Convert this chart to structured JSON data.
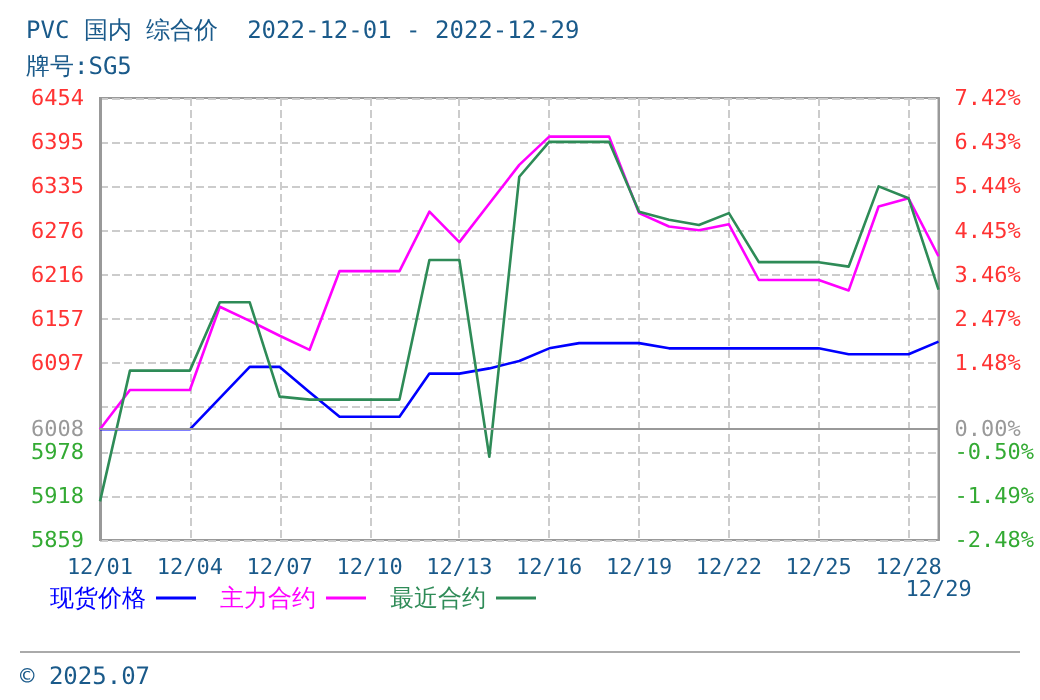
{
  "chart_data": {
    "type": "line",
    "title": "PVC 国内 综合价  2022-12-01 - 2022-12-29",
    "subtitle": "牌号:SG5",
    "categories": [
      "12/01",
      null,
      null,
      "12/04",
      null,
      null,
      "12/07",
      null,
      null,
      "12/10",
      null,
      null,
      "12/13",
      null,
      null,
      "12/16",
      null,
      null,
      "12/19",
      null,
      null,
      "12/22",
      null,
      null,
      "12/25",
      null,
      null,
      "12/28",
      "12/29"
    ],
    "series": [
      {
        "name": "现货价格",
        "color": "#0000ff",
        "values": [
          6008,
          6008,
          6008,
          6008,
          6050,
          6092,
          6092,
          6058,
          6025,
          6025,
          6025,
          6083,
          6083,
          6090,
          6100,
          6117,
          6124,
          6124,
          6124,
          6117,
          6117,
          6117,
          6117,
          6117,
          6117,
          6109,
          6109,
          6109,
          6126
        ]
      },
      {
        "name": "主力合约",
        "color": "#ff00ff",
        "values": [
          6008,
          6061,
          6061,
          6061,
          6173,
          6154,
          6134,
          6115,
          6221,
          6221,
          6221,
          6301,
          6260,
          6312,
          6364,
          6402,
          6402,
          6402,
          6299,
          6281,
          6276,
          6284,
          6209,
          6209,
          6209,
          6195,
          6308,
          6319,
          6241
        ]
      },
      {
        "name": "最近合约",
        "color": "#2e8b57",
        "values": [
          5911,
          6087,
          6087,
          6087,
          6179,
          6179,
          6052,
          6048,
          6048,
          6048,
          6048,
          6236,
          6236,
          5971,
          6348,
          6395,
          6395,
          6395,
          6301,
          6290,
          6283,
          6299,
          6233,
          6233,
          6233,
          6227,
          6335,
          6319,
          6196
        ]
      }
    ],
    "ylim": [
      5859,
      6454
    ],
    "yticks": [
      {
        "value": 5859,
        "label": "5859"
      },
      {
        "value": 5918.5,
        "label": "5918"
      },
      {
        "value": 5978,
        "label": "5978"
      },
      {
        "value": 6008,
        "label": "6008"
      },
      {
        "value": 6037.5,
        "label": null
      },
      {
        "value": 6097,
        "label": "6097"
      },
      {
        "value": 6156.5,
        "label": "6157"
      },
      {
        "value": 6216,
        "label": "6216"
      },
      {
        "value": 6275.5,
        "label": "6276"
      },
      {
        "value": 6335,
        "label": "6335"
      },
      {
        "value": 6394.5,
        "label": "6395"
      },
      {
        "value": 6454,
        "label": "6454"
      }
    ],
    "y2lim": [
      -2.48,
      7.42
    ],
    "y2ticks": [
      {
        "value": -2.48,
        "label": "-2.48%"
      },
      {
        "value": -1.49,
        "label": "-1.49%"
      },
      {
        "value": -0.5,
        "label": "-0.50%"
      },
      {
        "value": 0,
        "label": "0.00%"
      },
      {
        "value": 0.49,
        "label": null
      },
      {
        "value": 1.48,
        "label": "1.48%"
      },
      {
        "value": 2.47,
        "label": "2.47%"
      },
      {
        "value": 3.46,
        "label": "3.46%"
      },
      {
        "value": 4.45,
        "label": "4.45%"
      },
      {
        "value": 5.44,
        "label": "5.44%"
      },
      {
        "value": 6.43,
        "label": "6.43%"
      },
      {
        "value": 7.42,
        "label": "7.42%"
      }
    ],
    "ref_lines": [
      {
        "axis": "y",
        "value": 6008,
        "color": "#999999",
        "line_style": "solid"
      }
    ],
    "grid": true,
    "legend": "bottom",
    "marker": "none",
    "line_style": "solid",
    "annotations": [
      "© 2025.07"
    ]
  }
}
